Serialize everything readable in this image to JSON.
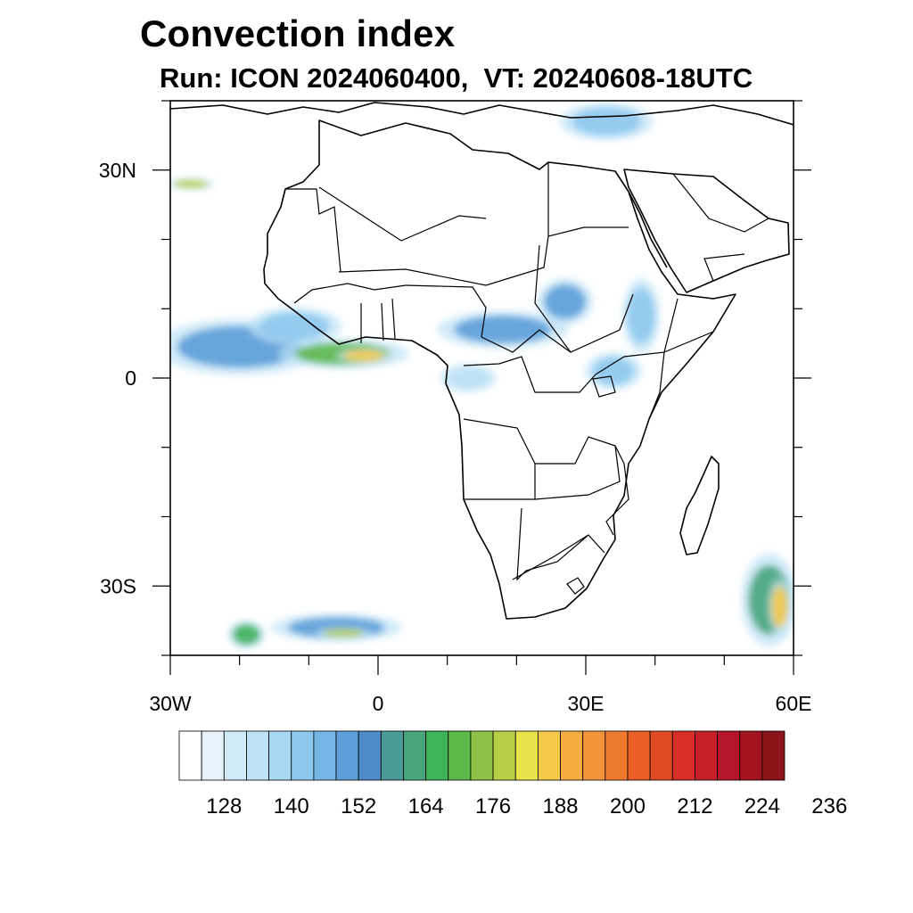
{
  "title": "Convection index",
  "subtitle": "Run: ICON 2024060400,  VT: 20240608-18UTC",
  "map": {
    "lon_range": [
      -30,
      60
    ],
    "lat_range": [
      -40,
      40
    ],
    "lat_ticks": [
      {
        "value": 30,
        "label": "30N"
      },
      {
        "value": 0,
        "label": "0"
      },
      {
        "value": -30,
        "label": "30S"
      }
    ],
    "lon_ticks": [
      {
        "value": -30,
        "label": "30W"
      },
      {
        "value": 0,
        "label": "0"
      },
      {
        "value": 30,
        "label": "30E"
      },
      {
        "value": 60,
        "label": "60E"
      }
    ],
    "features": [
      {
        "name": "itcz-west-atlantic",
        "lon": -20,
        "lat": 4.5,
        "rlon": 9,
        "rlat": 3,
        "level": 150
      },
      {
        "name": "gulf-of-guinea-band",
        "lon": -5,
        "lat": 3.5,
        "rlon": 7,
        "rlat": 1.6,
        "level": 170
      },
      {
        "name": "gulf-of-guinea-core",
        "lon": -2,
        "lat": 3.2,
        "rlon": 3,
        "rlat": 0.8,
        "level": 186
      },
      {
        "name": "guinea-coast-cells",
        "lon": -12,
        "lat": 7.5,
        "rlon": 5,
        "rlat": 2,
        "level": 140
      },
      {
        "name": "central-africa-band",
        "lon": 18,
        "lat": 7,
        "rlon": 7,
        "rlat": 2,
        "level": 148
      },
      {
        "name": "sudan-cluster",
        "lon": 27,
        "lat": 11,
        "rlon": 3,
        "rlat": 2.5,
        "level": 150
      },
      {
        "name": "ethiopia-highlands",
        "lon": 38,
        "lat": 9,
        "rlon": 2,
        "rlat": 4,
        "level": 140
      },
      {
        "name": "east-africa-rain",
        "lon": 34,
        "lat": 1,
        "rlon": 3,
        "rlat": 2,
        "level": 140
      },
      {
        "name": "congo-basin",
        "lon": 13,
        "lat": 0,
        "rlon": 3,
        "rlat": 1.5,
        "level": 134
      },
      {
        "name": "mediterranean-east",
        "lon": 33,
        "lat": 37,
        "rlon": 5,
        "rlat": 2,
        "level": 140
      },
      {
        "name": "south-atlantic-front",
        "lon": -6,
        "lat": -36,
        "rlon": 7,
        "rlat": 1.5,
        "level": 150
      },
      {
        "name": "south-atlantic-core",
        "lon": -5,
        "lat": -36.8,
        "rlon": 3,
        "rlat": 0.6,
        "level": 176
      },
      {
        "name": "madagascar-front",
        "lon": 56.5,
        "lat": -32,
        "rlon": 3,
        "rlat": 5,
        "level": 160
      },
      {
        "name": "madagascar-core",
        "lon": 58,
        "lat": -33,
        "rlon": 1.2,
        "rlat": 3,
        "level": 186
      },
      {
        "name": "cape-verde-streak",
        "lon": -27,
        "lat": 28,
        "rlon": 2.5,
        "rlat": 0.6,
        "level": 176
      },
      {
        "name": "southwest-streak",
        "lon": -19,
        "lat": -37,
        "rlon": 2,
        "rlat": 1.5,
        "level": 164
      }
    ]
  },
  "colorbar": {
    "colors": [
      "#ffffff",
      "#e8f4fb",
      "#d0eaf8",
      "#bde2f6",
      "#a6d8f3",
      "#8ec8ee",
      "#76b6e6",
      "#5c9fd9",
      "#4d8cc8",
      "#4a9a99",
      "#48a57d",
      "#3fb35a",
      "#5cb848",
      "#8ec248",
      "#b8cf48",
      "#e8e34a",
      "#f5ca4a",
      "#f4ad3f",
      "#f4953c",
      "#f07a30",
      "#ea6028",
      "#e04a25",
      "#d72f27",
      "#c51f28",
      "#b5162a",
      "#a3151e",
      "#8b1418"
    ],
    "tick_labels": [
      "128",
      "140",
      "152",
      "164",
      "176",
      "188",
      "200",
      "212",
      "224",
      "236"
    ]
  },
  "colors": {
    "coastline": "#000000",
    "frame": "#000000"
  }
}
